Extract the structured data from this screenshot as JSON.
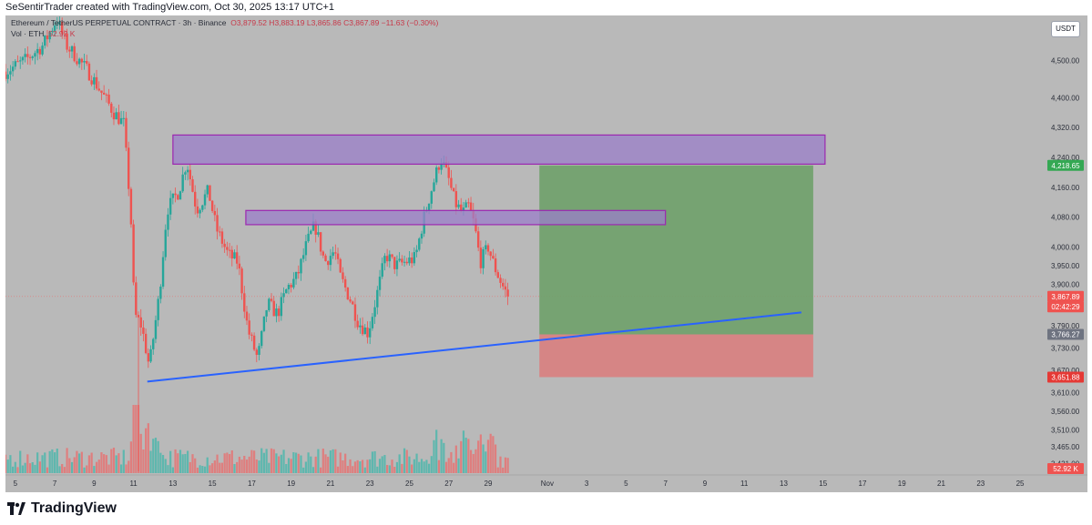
{
  "attribution": "SeSentirTrader created with TradingView.com, Oct 30, 2025 13:17 UTC+1",
  "header": {
    "symbol": "Ethereum / TetherUS PERPETUAL CONTRACT · 3h · Binance",
    "ohlc": "O3,879.52 H3,883.19 L3,865.86 C3,867.89 −11.63 (−0.30%)",
    "volume_label": "Vol · ETH",
    "volume_value": "52.92 K"
  },
  "currency_button": "USDT",
  "brand": "TradingView",
  "colors": {
    "background": "#b9b9b9",
    "up": "#26a69a",
    "down": "#ef5350",
    "zone_fill": "#9b7fc9",
    "zone_border": "#9c27b0",
    "target": "#6fa16a",
    "stop": "#d9807f",
    "trendline": "#2962ff"
  },
  "chart_data": {
    "type": "candlestick",
    "title": "Ethereum / TetherUS PERPETUAL CONTRACT · 3h · Binance",
    "price_range": [
      3390,
      4620
    ],
    "y_ticks": [
      3421,
      3465,
      3510,
      3560,
      3610,
      3670,
      3730,
      3790,
      3900,
      3950,
      4000,
      4080,
      4160,
      4240,
      4320,
      4400,
      4500
    ],
    "y_tick_labels": [
      "3,421.00",
      "3,465.00",
      "3,510.00",
      "3,560.00",
      "3,610.00",
      "3,670.00",
      "3,730.00",
      "3,790.00",
      "3,900.00",
      "3,950.00",
      "4,000.00",
      "4,080.00",
      "4,160.00",
      "4,240.00",
      "4,320.00",
      "4,400.00",
      "4,500.00"
    ],
    "x_ticks": [
      "5",
      "7",
      "9",
      "11",
      "13",
      "15",
      "17",
      "19",
      "21",
      "23",
      "25",
      "27",
      "29",
      "Nov",
      "3",
      "5",
      "7",
      "9",
      "11",
      "13",
      "15",
      "17",
      "19",
      "21",
      "23",
      "25"
    ],
    "x_tick_day_index": [
      5,
      7,
      9,
      11,
      13,
      15,
      17,
      19,
      21,
      23,
      25,
      27,
      29,
      32,
      34,
      36,
      38,
      40,
      42,
      44,
      46,
      48,
      50,
      52,
      54,
      56
    ],
    "x_range_days": [
      4.5,
      57.2
    ],
    "anchors": [
      {
        "d": 4.5,
        "p": 4470
      },
      {
        "d": 5.5,
        "p": 4500
      },
      {
        "d": 6.4,
        "p": 4540
      },
      {
        "d": 7.1,
        "p": 4610
      },
      {
        "d": 7.6,
        "p": 4540
      },
      {
        "d": 8.7,
        "p": 4470
      },
      {
        "d": 9.3,
        "p": 4420
      },
      {
        "d": 10.0,
        "p": 4360
      },
      {
        "d": 10.5,
        "p": 4330
      },
      {
        "d": 10.85,
        "p": 4100
      },
      {
        "d": 11.05,
        "p": 3820
      },
      {
        "d": 11.4,
        "p": 3790
      },
      {
        "d": 11.8,
        "p": 3680
      },
      {
        "d": 12.3,
        "p": 3870
      },
      {
        "d": 12.7,
        "p": 4100
      },
      {
        "d": 13.3,
        "p": 4150
      },
      {
        "d": 13.7,
        "p": 4230
      },
      {
        "d": 14.2,
        "p": 4100
      },
      {
        "d": 14.8,
        "p": 4150
      },
      {
        "d": 15.2,
        "p": 4050
      },
      {
        "d": 15.8,
        "p": 3980
      },
      {
        "d": 16.3,
        "p": 3960
      },
      {
        "d": 16.8,
        "p": 3780
      },
      {
        "d": 17.3,
        "p": 3700
      },
      {
        "d": 17.8,
        "p": 3850
      },
      {
        "d": 18.3,
        "p": 3820
      },
      {
        "d": 18.8,
        "p": 3890
      },
      {
        "d": 19.3,
        "p": 3920
      },
      {
        "d": 19.8,
        "p": 4010
      },
      {
        "d": 20.2,
        "p": 4060
      },
      {
        "d": 20.7,
        "p": 3960
      },
      {
        "d": 21.2,
        "p": 3990
      },
      {
        "d": 21.5,
        "p": 3920
      },
      {
        "d": 22.0,
        "p": 3860
      },
      {
        "d": 22.4,
        "p": 3800
      },
      {
        "d": 22.9,
        "p": 3770
      },
      {
        "d": 23.3,
        "p": 3860
      },
      {
        "d": 23.8,
        "p": 3980
      },
      {
        "d": 24.3,
        "p": 3950
      },
      {
        "d": 24.8,
        "p": 3960
      },
      {
        "d": 25.3,
        "p": 3970
      },
      {
        "d": 25.7,
        "p": 4070
      },
      {
        "d": 26.1,
        "p": 4150
      },
      {
        "d": 26.6,
        "p": 4240
      },
      {
        "d": 27.0,
        "p": 4180
      },
      {
        "d": 27.3,
        "p": 4120
      },
      {
        "d": 27.7,
        "p": 4090
      },
      {
        "d": 28.0,
        "p": 4110
      },
      {
        "d": 28.3,
        "p": 4060
      },
      {
        "d": 28.6,
        "p": 3960
      },
      {
        "d": 29.0,
        "p": 4000
      },
      {
        "d": 29.3,
        "p": 3950
      },
      {
        "d": 29.7,
        "p": 3900
      },
      {
        "d": 30.0,
        "p": 3868
      }
    ],
    "supply_zones": [
      {
        "d0": 13.0,
        "d1": 46.1,
        "p_low": 4222,
        "p_high": 4300
      },
      {
        "d0": 16.7,
        "d1": 38.0,
        "p_low": 4060,
        "p_high": 4098
      }
    ],
    "trendline": {
      "d0": 11.7,
      "p0": 3640,
      "d1": 44.9,
      "p1": 3825
    },
    "position": {
      "d0": 31.6,
      "d1": 45.5,
      "target": 4218.65,
      "entry": 3766.27,
      "stop": 3651.88
    },
    "price_labels": [
      {
        "text": "4,218.65",
        "price": 4218.65,
        "color": "#34a853"
      },
      {
        "text": "3,867.89",
        "price": 3867.89,
        "color": "#ef5350"
      },
      {
        "text": "02:42:29",
        "price": 3840,
        "color": "#ef5350"
      },
      {
        "text": "3,766.27",
        "price": 3766.27,
        "color": "#6e7380"
      },
      {
        "text": "3,651.88",
        "price": 3651.88,
        "color": "#e53935"
      }
    ],
    "last_price": 3867.89,
    "volume_label_value": "52.92 K"
  }
}
